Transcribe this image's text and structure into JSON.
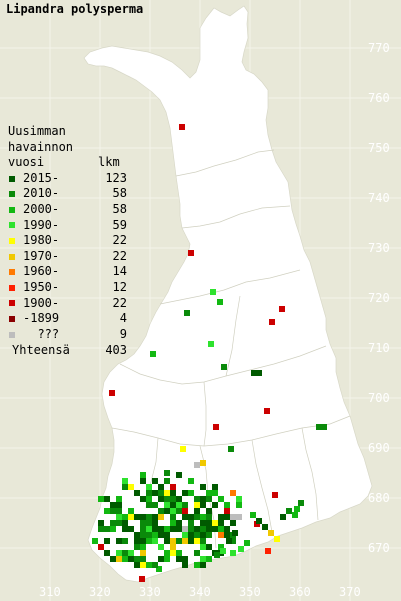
{
  "title": "Lipandra polysperma",
  "legend": {
    "header_lines": [
      "Uusimman",
      "havainnon"
    ],
    "col_label": "vuosi",
    "col_count": "lkm",
    "rows": [
      {
        "label": "2015-",
        "count": "123",
        "color": "#005a00"
      },
      {
        "label": "2010-",
        "count": "58",
        "color": "#0a8a0a"
      },
      {
        "label": "2000-",
        "count": "58",
        "color": "#12b812"
      },
      {
        "label": "1990-",
        "count": "59",
        "color": "#2ee22e"
      },
      {
        "label": "1980-",
        "count": "22",
        "color": "#ffff00"
      },
      {
        "label": "1970-",
        "count": "22",
        "color": "#f0c800"
      },
      {
        "label": "1960-",
        "count": "14",
        "color": "#ff7a00"
      },
      {
        "label": "1950-",
        "count": "12",
        "color": "#ff2000"
      },
      {
        "label": "1900-",
        "count": "22",
        "color": "#cc0000"
      },
      {
        "label": "-1899",
        "count": "4",
        "color": "#8a0000"
      },
      {
        "label": "???",
        "count": "9",
        "color": "#bdbdbd"
      }
    ],
    "total_label": "Yhteensä",
    "total_count": "403"
  },
  "y_ticks": [
    "770",
    "760",
    "750",
    "740",
    "730",
    "720",
    "710",
    "700",
    "690",
    "680",
    "670"
  ],
  "x_ticks": [
    "310",
    "320",
    "330",
    "340",
    "350",
    "360",
    "370"
  ]
}
